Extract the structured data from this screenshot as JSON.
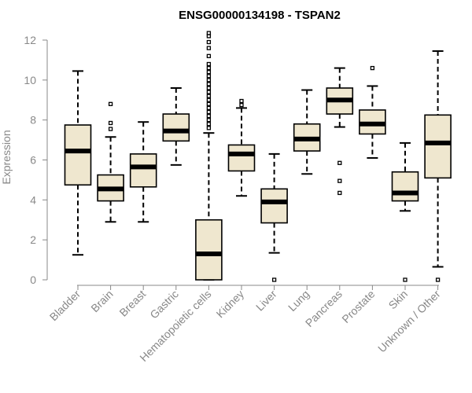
{
  "chart_data": {
    "type": "boxplot",
    "title": "ENSG00000134198 - TSPAN2",
    "xlabel": "",
    "ylabel": "Expression",
    "ylim": [
      0,
      12
    ],
    "yticks": [
      0,
      2,
      4,
      6,
      8,
      10,
      12
    ],
    "categories": [
      "Bladder",
      "Brain",
      "Breast",
      "Gastric",
      "Hematopoietic cells",
      "Kidney",
      "Liver",
      "Lung",
      "Pancreas",
      "Prostate",
      "Skin",
      "Unknown / Other"
    ],
    "boxes": [
      {
        "category": "Bladder",
        "min": 1.25,
        "q1": 4.75,
        "median": 6.45,
        "q3": 7.75,
        "max": 10.45,
        "outliers": []
      },
      {
        "category": "Brain",
        "min": 2.9,
        "q1": 3.95,
        "median": 4.55,
        "q3": 5.25,
        "max": 7.15,
        "outliers": [
          7.55,
          7.85,
          8.8
        ]
      },
      {
        "category": "Breast",
        "min": 2.9,
        "q1": 4.65,
        "median": 5.65,
        "q3": 6.3,
        "max": 7.9,
        "outliers": []
      },
      {
        "category": "Gastric",
        "min": 5.75,
        "q1": 6.95,
        "median": 7.45,
        "q3": 8.3,
        "max": 9.6,
        "outliers": []
      },
      {
        "category": "Hematopoietic cells",
        "min": 0.0,
        "q1": 0.0,
        "median": 1.3,
        "q3": 3.0,
        "max": 7.35,
        "outliers": [
          7.6,
          7.8,
          8.0,
          8.2,
          8.4,
          8.6,
          8.8,
          9.0,
          9.2,
          9.4,
          9.6,
          9.8,
          10.0,
          10.2,
          10.4,
          10.6,
          10.8,
          11.2,
          11.6,
          11.9,
          12.2,
          12.35
        ]
      },
      {
        "category": "Kidney",
        "min": 4.2,
        "q1": 5.45,
        "median": 6.3,
        "q3": 6.75,
        "max": 8.6,
        "outliers": [
          8.75,
          8.95
        ]
      },
      {
        "category": "Liver",
        "min": 1.35,
        "q1": 2.85,
        "median": 3.9,
        "q3": 4.55,
        "max": 6.3,
        "outliers": [
          0.0
        ]
      },
      {
        "category": "Lung",
        "min": 5.3,
        "q1": 6.45,
        "median": 7.05,
        "q3": 7.8,
        "max": 9.5,
        "outliers": []
      },
      {
        "category": "Pancreas",
        "min": 7.65,
        "q1": 8.3,
        "median": 9.0,
        "q3": 9.6,
        "max": 10.6,
        "outliers": [
          4.35,
          4.95,
          5.85
        ]
      },
      {
        "category": "Prostate",
        "min": 6.1,
        "q1": 7.3,
        "median": 7.8,
        "q3": 8.5,
        "max": 9.7,
        "outliers": [
          10.6
        ]
      },
      {
        "category": "Skin",
        "min": 3.45,
        "q1": 3.95,
        "median": 4.35,
        "q3": 5.4,
        "max": 6.85,
        "outliers": [
          0.0
        ]
      },
      {
        "category": "Unknown / Other",
        "min": 0.65,
        "q1": 5.1,
        "median": 6.85,
        "q3": 8.25,
        "max": 11.45,
        "outliers": [
          0.0
        ]
      }
    ]
  }
}
